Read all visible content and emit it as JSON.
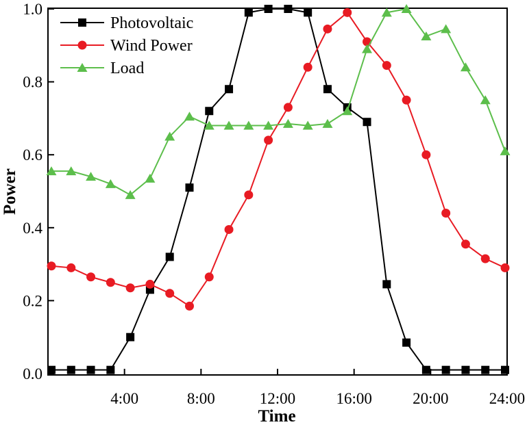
{
  "figure": {
    "background": "#ffffff",
    "axis_color": "#000000"
  },
  "chart_data": {
    "type": "line",
    "title": "",
    "xlabel": "Time",
    "ylabel": "Power",
    "grid": false,
    "legend_position": "top-left-inside",
    "legend_frame": false,
    "ylim": [
      0.0,
      1.0
    ],
    "y_ticks": [
      "0.0",
      "0.2",
      "0.4",
      "0.6",
      "0.8",
      "1.0"
    ],
    "y_tick_values": [
      0.0,
      0.2,
      0.4,
      0.6,
      0.8,
      1.0
    ],
    "x_axis_range_hours": [
      0,
      24
    ],
    "x_tick_hours": [
      4,
      8,
      12,
      16,
      20,
      24
    ],
    "x_tick_labels": [
      "4:00",
      "8:00",
      "12:00",
      "16:00",
      "20:00",
      "24:00"
    ],
    "x_hours": [
      1,
      2,
      3,
      4,
      5,
      6,
      7,
      8,
      9,
      10,
      11,
      12,
      13,
      14,
      15,
      16,
      17,
      18,
      19,
      20,
      21,
      22,
      23,
      24
    ],
    "series": [
      {
        "name": "Photovoltaic",
        "color": "#000000",
        "marker": "square",
        "values": [
          0.01,
          0.01,
          0.01,
          0.01,
          0.1,
          0.23,
          0.32,
          0.51,
          0.72,
          0.78,
          0.99,
          1.0,
          1.0,
          0.99,
          0.78,
          0.73,
          0.69,
          0.245,
          0.085,
          0.01,
          0.01,
          0.01,
          0.01,
          0.01
        ]
      },
      {
        "name": "Wind Power",
        "color": "#e81b23",
        "marker": "circle",
        "values": [
          0.295,
          0.29,
          0.265,
          0.25,
          0.235,
          0.245,
          0.22,
          0.185,
          0.265,
          0.395,
          0.49,
          0.64,
          0.73,
          0.84,
          0.945,
          0.99,
          0.91,
          0.845,
          0.75,
          0.6,
          0.44,
          0.355,
          0.315,
          0.29
        ]
      },
      {
        "name": "Load",
        "color": "#5cbe4b",
        "marker": "triangle",
        "values": [
          0.555,
          0.555,
          0.54,
          0.52,
          0.49,
          0.535,
          0.65,
          0.705,
          0.68,
          0.68,
          0.68,
          0.68,
          0.685,
          0.68,
          0.685,
          0.72,
          0.89,
          0.99,
          1.0,
          0.925,
          0.945,
          0.84,
          0.75,
          0.61
        ]
      }
    ]
  }
}
